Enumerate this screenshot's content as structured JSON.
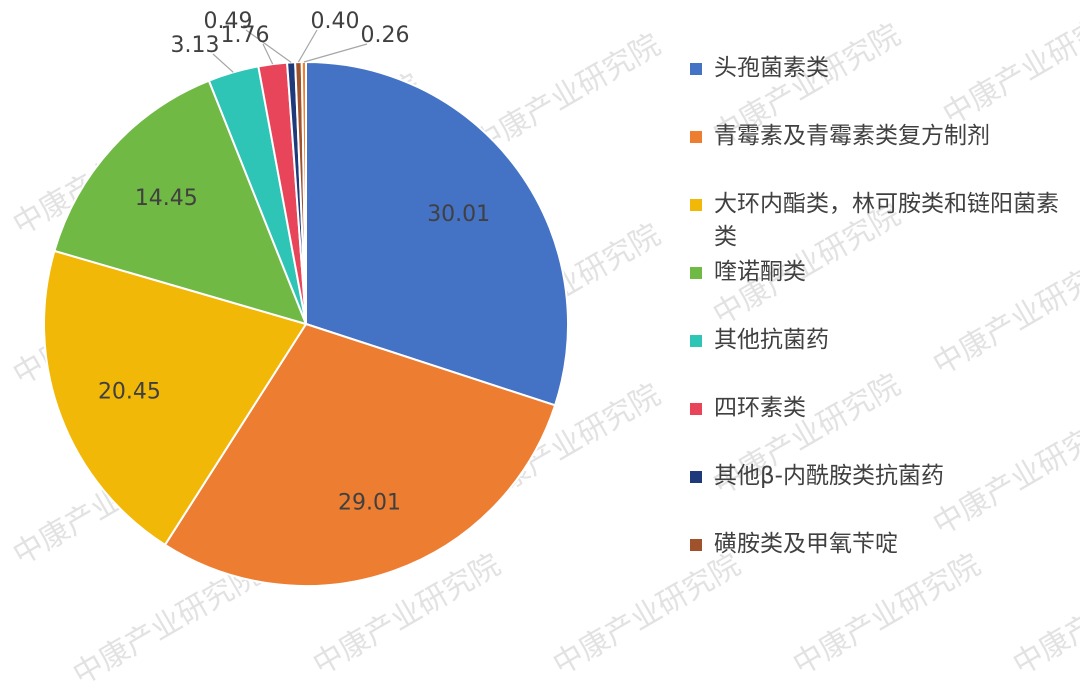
{
  "chart_data": {
    "type": "pie",
    "start_angle_deg": 0,
    "direction": "clockwise",
    "slices": [
      {
        "label": "头孢菌素类",
        "value": 30.01,
        "color": "#4472C4"
      },
      {
        "label": "青霉素及青霉素类复方制剂",
        "value": 29.01,
        "color": "#ED7D31"
      },
      {
        "label": "大环内酯类，林可胺类和链阳菌素类",
        "value": 20.45,
        "color": "#F2B807"
      },
      {
        "label": "喹诺酮类",
        "value": 14.45,
        "color": "#70B944"
      },
      {
        "label": "其他抗菌药",
        "value": 3.13,
        "color": "#2EC4B6"
      },
      {
        "label": "四环素类",
        "value": 1.76,
        "color": "#E8445A"
      },
      {
        "label": "其他β-内酰胺类抗菌药",
        "value": 0.49,
        "color": "#1F3A7A"
      },
      {
        "label": "磺胺类及甲氧苄啶",
        "value": 0.4,
        "color": "#A0522D"
      },
      {
        "label": "",
        "value": 0.26,
        "color": "#F07F2E"
      }
    ],
    "data_labels": [
      "30.01",
      "29.01",
      "20.45",
      "14.45",
      "3.13",
      "1.76",
      "0.49",
      "0.40",
      "0.26"
    ],
    "legend_position": "right",
    "watermark": "中康产业研究院"
  }
}
